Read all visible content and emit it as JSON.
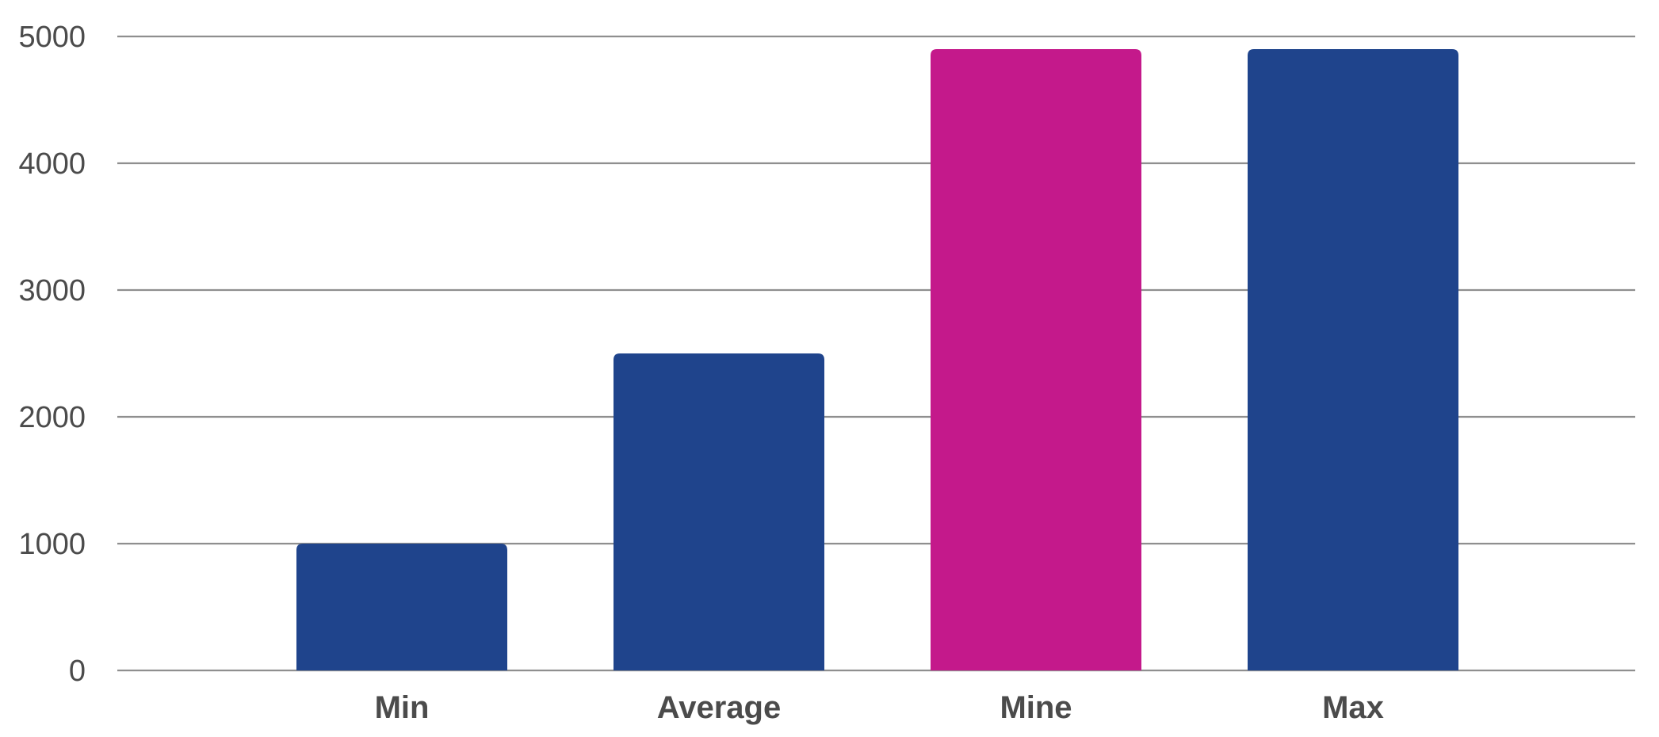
{
  "chart_data": {
    "type": "bar",
    "title": "",
    "xlabel": "",
    "ylabel": "",
    "categories": [
      "Min",
      "Average",
      "Mine",
      "Max"
    ],
    "values": [
      1000,
      2500,
      4900,
      4900
    ],
    "ylim": [
      0,
      5000
    ],
    "yticks": [
      0,
      1000,
      2000,
      3000,
      4000,
      5000
    ],
    "grid": true,
    "legend": "none",
    "colors": {
      "default_bar": "#1f448c",
      "highlight_bar": "#c4198b",
      "grid": "#8f8f8f",
      "text": "#4b4b4b"
    },
    "highlight_category": "Mine"
  }
}
